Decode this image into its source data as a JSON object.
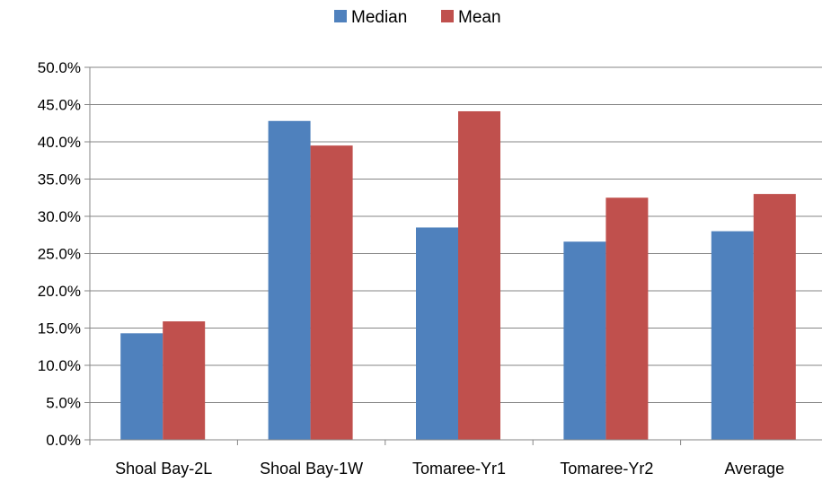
{
  "chart_data": {
    "type": "bar",
    "categories": [
      "Shoal Bay-2L",
      "Shoal Bay-1W",
      "Tomaree-Yr1",
      "Tomaree-Yr2",
      "Average"
    ],
    "series": [
      {
        "name": "Median",
        "color": "#4F81BD",
        "values": [
          14.3,
          42.8,
          28.5,
          26.6,
          28.0
        ]
      },
      {
        "name": "Mean",
        "color": "#C0504D",
        "values": [
          15.9,
          39.5,
          44.1,
          32.5,
          33.0
        ]
      }
    ],
    "ylim": [
      0,
      50
    ],
    "yticks": [
      "0.0%",
      "5.0%",
      "10.0%",
      "15.0%",
      "20.0%",
      "25.0%",
      "30.0%",
      "35.0%",
      "40.0%",
      "45.0%",
      "50.0%"
    ],
    "ytick_values": [
      0,
      5,
      10,
      15,
      20,
      25,
      30,
      35,
      40,
      45,
      50
    ],
    "grid": true,
    "legend": "top-center",
    "title": "",
    "xlabel": "",
    "ylabel": ""
  }
}
